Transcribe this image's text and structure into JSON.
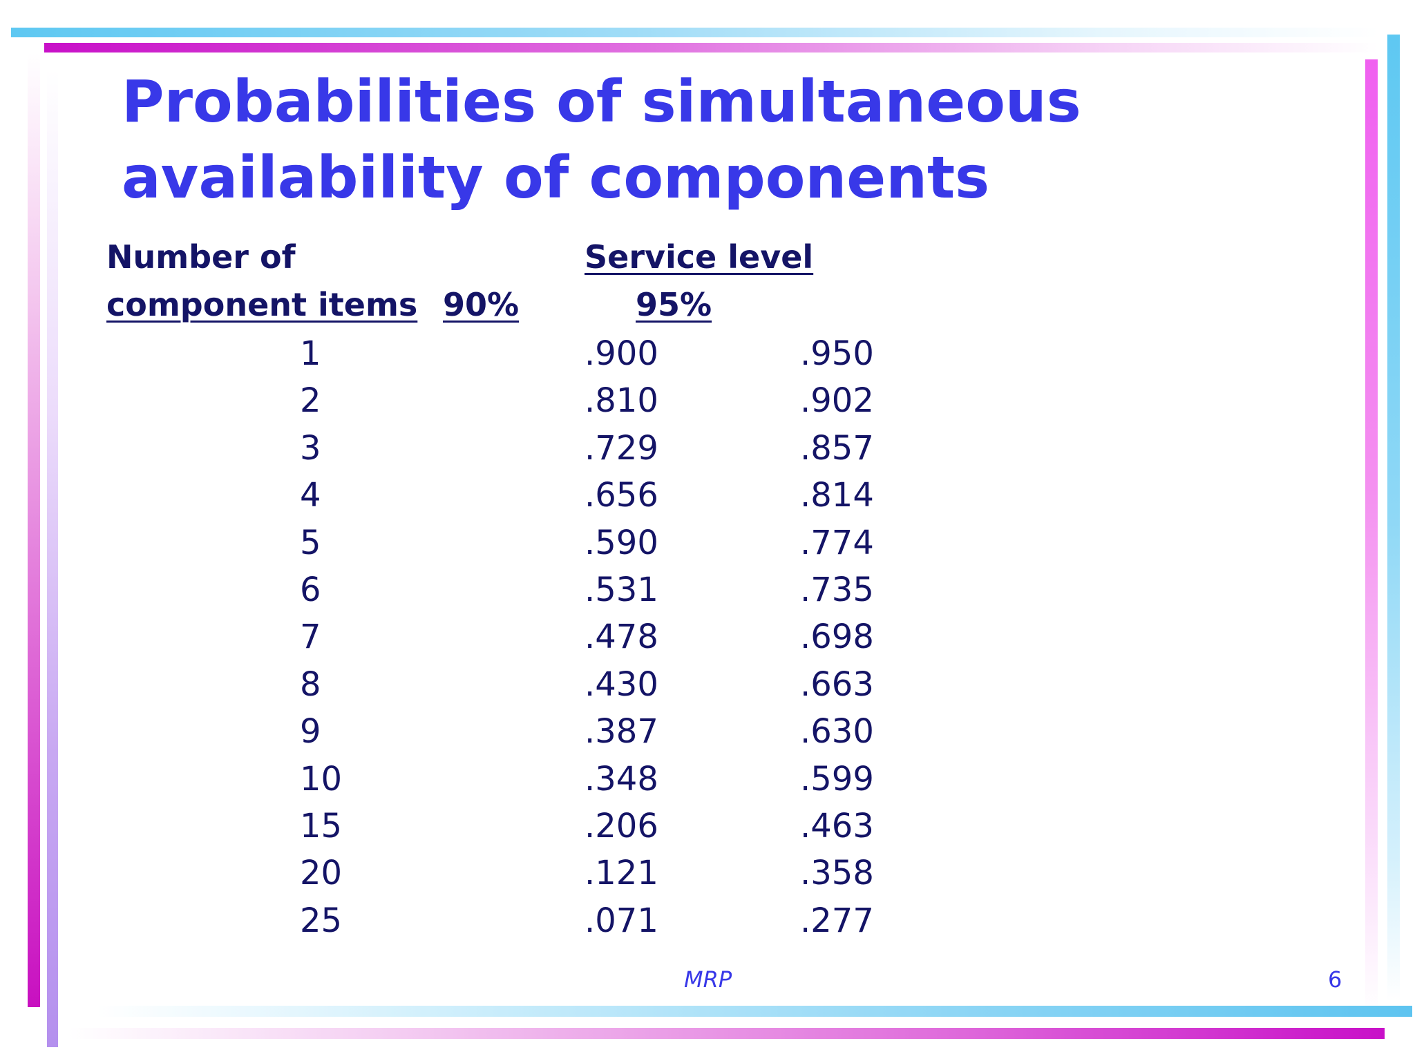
{
  "slide": {
    "title_line1": "Probabilities of simultaneous",
    "title_line2": "availability of components",
    "colors": {
      "title": "#3838e8",
      "text": "#141466",
      "accent_cyan": "#5ec8f2",
      "accent_magenta": "#c810c8"
    }
  },
  "table": {
    "header_col1_line1": "Number of",
    "header_col1_line2": "component items",
    "header_group": "Service level",
    "header_col2": "90%",
    "header_col3": "95%",
    "rows": [
      {
        "n": "1",
        "p90": ".900",
        "p95": ".950"
      },
      {
        "n": "2",
        "p90": ".810",
        "p95": ".902"
      },
      {
        "n": "3",
        "p90": ".729",
        "p95": ".857"
      },
      {
        "n": "4",
        "p90": ".656",
        "p95": ".814"
      },
      {
        "n": "5",
        "p90": ".590",
        "p95": ".774"
      },
      {
        "n": "6",
        "p90": ".531",
        "p95": ".735"
      },
      {
        "n": "7",
        "p90": ".478",
        "p95": ".698"
      },
      {
        "n": "8",
        "p90": ".430",
        "p95": ".663"
      },
      {
        "n": "9",
        "p90": ".387",
        "p95": ".630"
      },
      {
        "n": "10",
        "p90": ".348",
        "p95": ".599"
      },
      {
        "n": "15",
        "p90": ".206",
        "p95": ".463"
      },
      {
        "n": "20",
        "p90": ".121",
        "p95": ".358"
      },
      {
        "n": "25",
        "p90": ".071",
        "p95": ".277"
      }
    ]
  },
  "footer": {
    "center": "MRP",
    "page_number": "6"
  }
}
